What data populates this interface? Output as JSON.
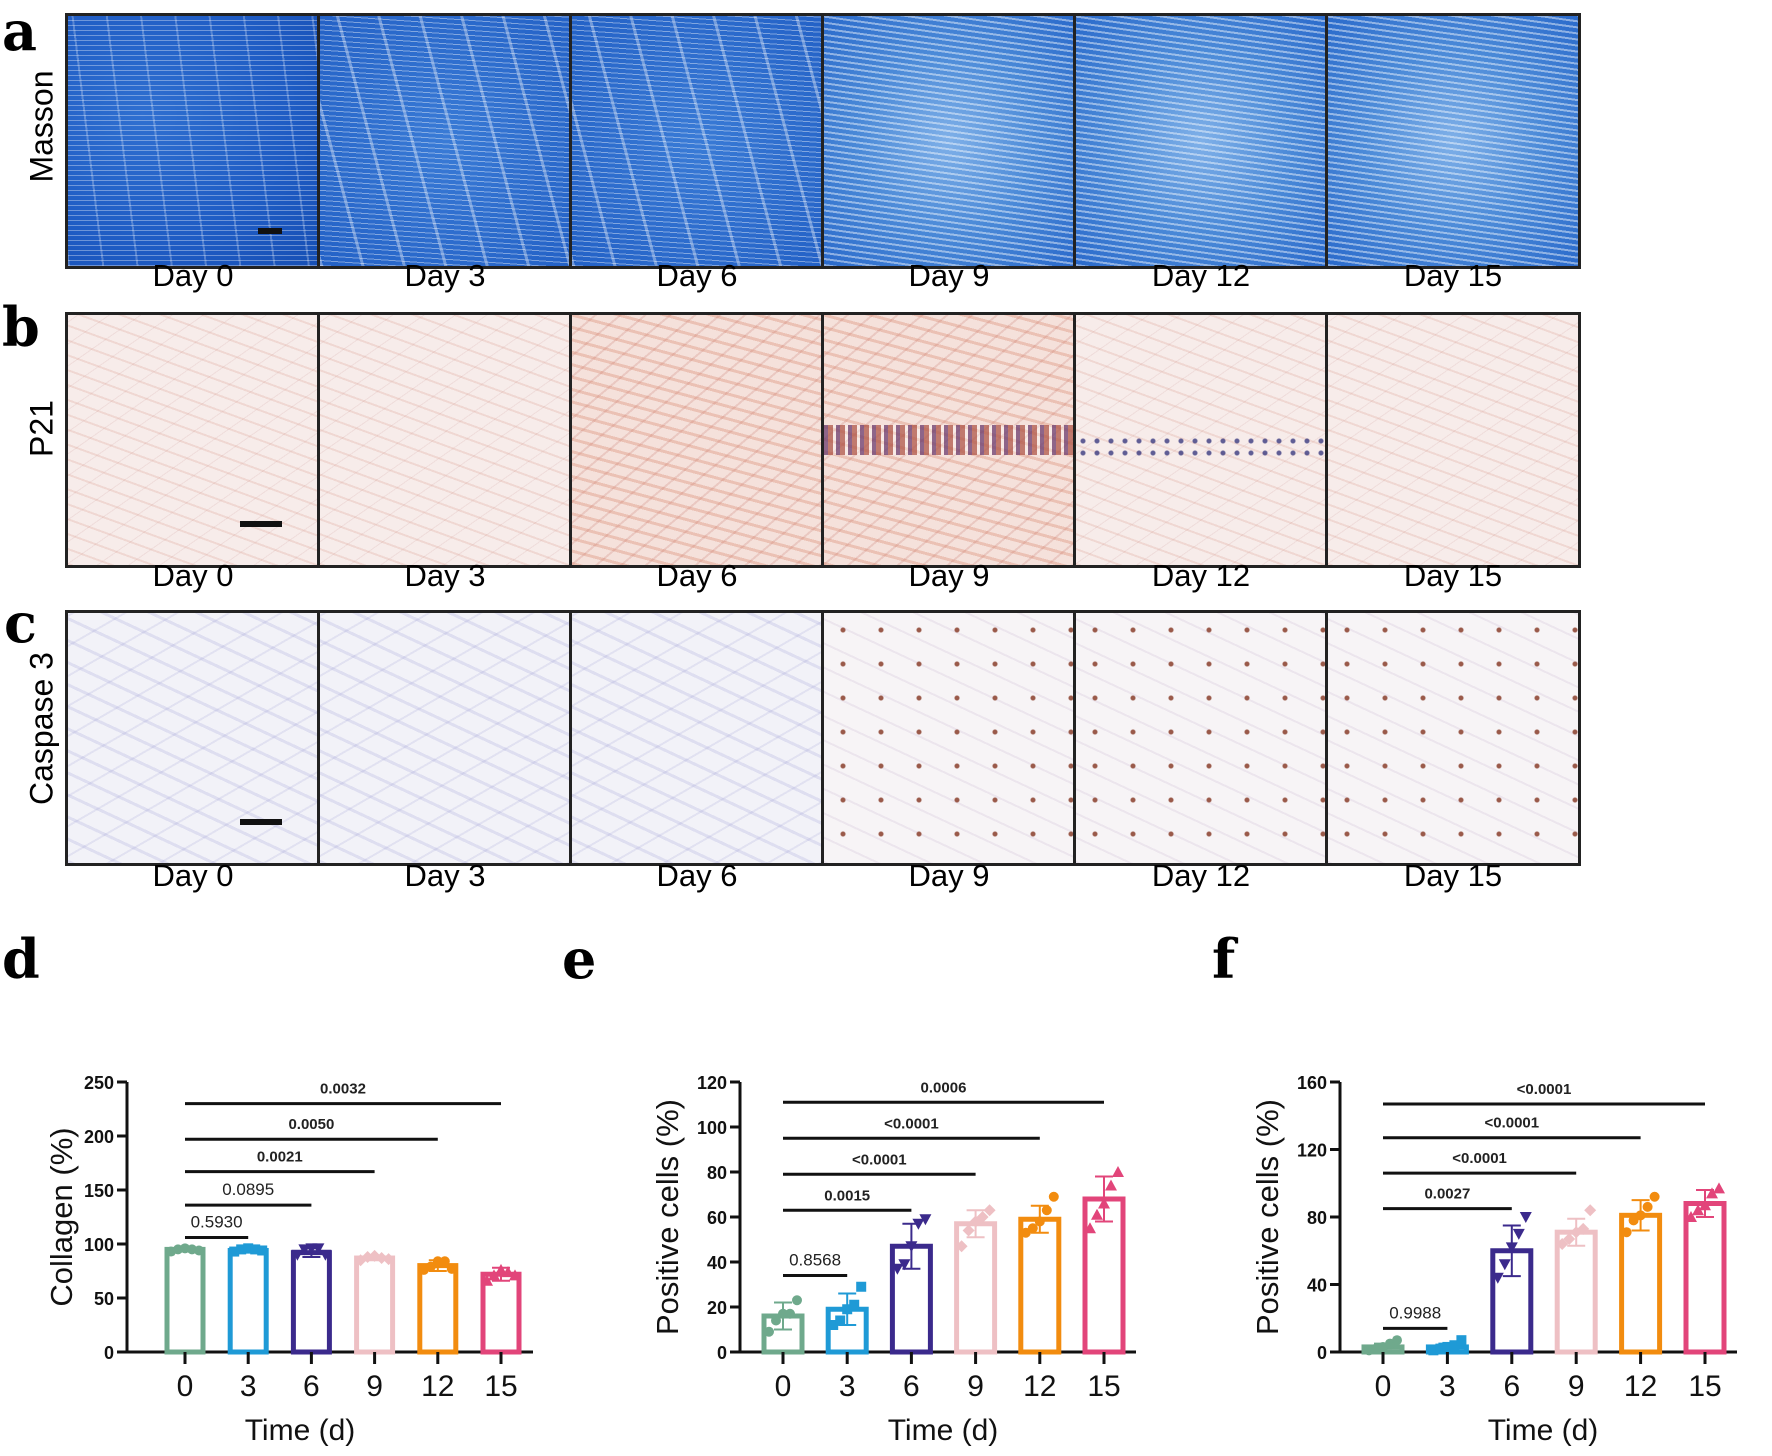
{
  "panels": {
    "a": {
      "letter": "a",
      "row_label": "Masson",
      "days": [
        "Day 0",
        "Day 3",
        "Day 6",
        "Day 9",
        "Day 12",
        "Day 15"
      ]
    },
    "b": {
      "letter": "b",
      "row_label": "P21",
      "days": [
        "Day 0",
        "Day 3",
        "Day 6",
        "Day 9",
        "Day 12",
        "Day 15"
      ]
    },
    "c": {
      "letter": "c",
      "row_label": "Caspase 3",
      "days": [
        "Day 0",
        "Day 3",
        "Day 6",
        "Day 9",
        "Day 12",
        "Day 15"
      ]
    },
    "d": {
      "letter": "d"
    },
    "e": {
      "letter": "e"
    },
    "f": {
      "letter": "f"
    }
  },
  "colors": {
    "day0": "#6fa98c",
    "day3": "#1f9ad6",
    "day6": "#3b2a8c",
    "day9": "#eec0c4",
    "day12": "#f28c0f",
    "day15": "#e2457a"
  },
  "chart_data": [
    {
      "id": "d",
      "type": "bar",
      "title": "",
      "xlabel": "Time (d)",
      "ylabel": "Collagen (%)",
      "categories": [
        "0",
        "3",
        "6",
        "9",
        "12",
        "15"
      ],
      "values": [
        95,
        94,
        92,
        87,
        80,
        72
      ],
      "error_sd": [
        2,
        2,
        4,
        2,
        5,
        6
      ],
      "points": [
        [
          93,
          95,
          96,
          95,
          94
        ],
        [
          93,
          95,
          96,
          95,
          94
        ],
        [
          90,
          95,
          96,
          96,
          90
        ],
        [
          85,
          88,
          89,
          87,
          86
        ],
        [
          76,
          79,
          84,
          84,
          77
        ],
        [
          66,
          71,
          76,
          74,
          71
        ]
      ],
      "markers": [
        "circle",
        "square",
        "triangle-down",
        "diamond",
        "circle",
        "triangle-up"
      ],
      "ylim": [
        0,
        250
      ],
      "yticks": [
        0,
        50,
        100,
        150,
        200,
        250
      ],
      "comparisons": [
        {
          "from": "0",
          "to": "3",
          "label": "0.5930",
          "y": 106,
          "bold": false
        },
        {
          "from": "0",
          "to": "6",
          "label": "0.0895",
          "y": 136,
          "bold": false
        },
        {
          "from": "0",
          "to": "9",
          "label": "0.0021",
          "y": 167,
          "bold": true
        },
        {
          "from": "0",
          "to": "12",
          "label": "0.0050",
          "y": 197,
          "bold": true
        },
        {
          "from": "0",
          "to": "15",
          "label": "0.0032",
          "y": 230,
          "bold": true
        }
      ]
    },
    {
      "id": "e",
      "type": "bar",
      "title": "",
      "xlabel": "Time (d)",
      "ylabel": "Positive cells (%)",
      "categories": [
        "0",
        "3",
        "6",
        "9",
        "12",
        "15"
      ],
      "values": [
        16,
        19,
        47,
        57,
        59,
        68
      ],
      "error_sd": [
        6,
        7,
        10,
        6,
        6,
        10
      ],
      "points": [
        [
          9,
          14,
          17,
          17,
          23
        ],
        [
          12,
          14,
          19,
          21,
          29
        ],
        [
          37,
          39,
          47,
          57,
          59
        ],
        [
          47,
          54,
          58,
          60,
          63
        ],
        [
          53,
          55,
          58,
          63,
          69
        ],
        [
          55,
          61,
          66,
          74,
          80
        ]
      ],
      "markers": [
        "circle",
        "square",
        "triangle-down",
        "diamond",
        "circle",
        "triangle-up"
      ],
      "ylim": [
        0,
        120
      ],
      "yticks": [
        0,
        20,
        40,
        60,
        80,
        100,
        120
      ],
      "comparisons": [
        {
          "from": "0",
          "to": "3",
          "label": "0.8568",
          "y": 34,
          "bold": false
        },
        {
          "from": "0",
          "to": "6",
          "label": "0.0015",
          "y": 63,
          "bold": true
        },
        {
          "from": "0",
          "to": "9",
          "label": "<0.0001",
          "y": 79,
          "bold": true
        },
        {
          "from": "0",
          "to": "12",
          "label": "<0.0001",
          "y": 95,
          "bold": true
        },
        {
          "from": "0",
          "to": "15",
          "label": "0.0006",
          "y": 111,
          "bold": true
        }
      ]
    },
    {
      "id": "f",
      "type": "bar",
      "title": "",
      "xlabel": "Time (d)",
      "ylabel": "Positive cells (%)",
      "categories": [
        "0",
        "3",
        "6",
        "9",
        "12",
        "15"
      ],
      "values": [
        3,
        3,
        60,
        71,
        81,
        88
      ],
      "error_sd": [
        2,
        2,
        15,
        8,
        9,
        8
      ],
      "points": [
        [
          1,
          2,
          3,
          5,
          7
        ],
        [
          1,
          2,
          3,
          4,
          7
        ],
        [
          44,
          52,
          62,
          70,
          80
        ],
        [
          64,
          67,
          71,
          73,
          84
        ],
        [
          71,
          78,
          81,
          86,
          92
        ],
        [
          80,
          84,
          87,
          94,
          97
        ]
      ],
      "markers": [
        "circle",
        "square",
        "triangle-down",
        "diamond",
        "circle",
        "triangle-up"
      ],
      "ylim": [
        0,
        160
      ],
      "yticks": [
        0,
        40,
        80,
        120,
        160
      ],
      "comparisons": [
        {
          "from": "0",
          "to": "3",
          "label": "0.9988",
          "y": 14,
          "bold": false
        },
        {
          "from": "0",
          "to": "6",
          "label": "0.0027",
          "y": 85,
          "bold": true
        },
        {
          "from": "0",
          "to": "9",
          "label": "<0.0001",
          "y": 106,
          "bold": true
        },
        {
          "from": "0",
          "to": "12",
          "label": "<0.0001",
          "y": 127,
          "bold": true
        },
        {
          "from": "0",
          "to": "15",
          "label": "<0.0001",
          "y": 147,
          "bold": true
        }
      ]
    }
  ]
}
